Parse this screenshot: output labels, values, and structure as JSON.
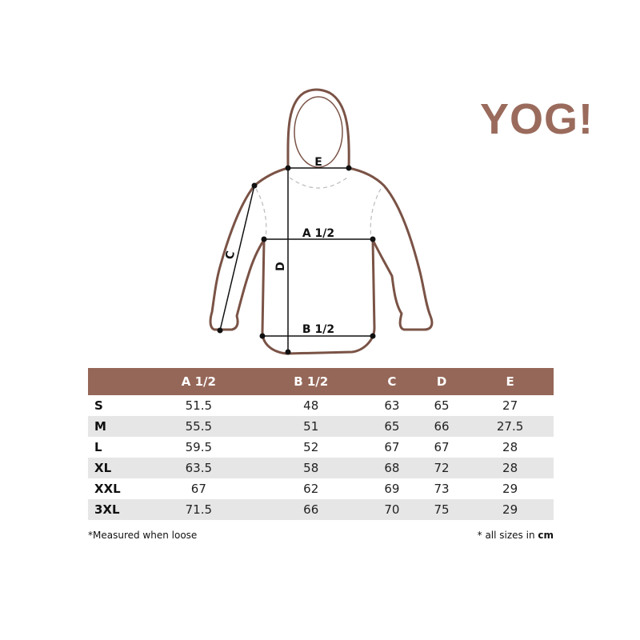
{
  "brand": {
    "logo_text": "YOG!",
    "color": "#9a6b5c"
  },
  "diagram": {
    "labels": {
      "e": "E",
      "a": "A 1/2",
      "b": "B 1/2",
      "c": "C",
      "d": "D"
    },
    "outline_color": "#7a5346"
  },
  "table": {
    "header_color": "#956758",
    "stripe_color": "#e6e6e6",
    "columns": [
      "",
      "A 1/2",
      "B 1/2",
      "C",
      "D",
      "E"
    ],
    "rows": [
      {
        "size": "S",
        "values": [
          "51.5",
          "48",
          "63",
          "65",
          "27"
        ]
      },
      {
        "size": "M",
        "values": [
          "55.5",
          "51",
          "65",
          "66",
          "27.5"
        ]
      },
      {
        "size": "L",
        "values": [
          "59.5",
          "52",
          "67",
          "67",
          "28"
        ]
      },
      {
        "size": "XL",
        "values": [
          "63.5",
          "58",
          "68",
          "72",
          "28"
        ]
      },
      {
        "size": "XXL",
        "values": [
          "67",
          "62",
          "69",
          "73",
          "29"
        ]
      },
      {
        "size": "3XL",
        "values": [
          "71.5",
          "66",
          "70",
          "75",
          "29"
        ]
      }
    ]
  },
  "notes": {
    "left": "*Measured when loose",
    "right_prefix": "* all sizes in ",
    "right_unit": "cm"
  }
}
